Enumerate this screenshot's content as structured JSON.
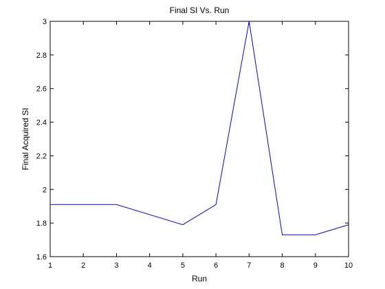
{
  "chart_data": {
    "type": "line",
    "title": "Final SI Vs. Run",
    "xlabel": "Run",
    "ylabel": "Final Acquired SI",
    "xlim": [
      1,
      10
    ],
    "ylim": [
      1.6,
      3
    ],
    "xticks": [
      1,
      2,
      3,
      4,
      5,
      6,
      7,
      8,
      9,
      10
    ],
    "yticks": [
      1.6,
      1.8,
      2,
      2.2,
      2.4,
      2.6,
      2.8,
      3
    ],
    "ytick_labels": [
      "1.6",
      "1.8",
      "2",
      "2.2",
      "2.4",
      "2.6",
      "2.8",
      "3"
    ],
    "grid": false,
    "series": [
      {
        "name": "Final SI",
        "color": "#0000ff",
        "x": [
          1,
          3,
          5,
          6,
          7,
          8,
          9,
          10
        ],
        "y": [
          1.91,
          1.91,
          1.79,
          1.91,
          3.0,
          1.73,
          1.73,
          1.79
        ]
      }
    ]
  }
}
